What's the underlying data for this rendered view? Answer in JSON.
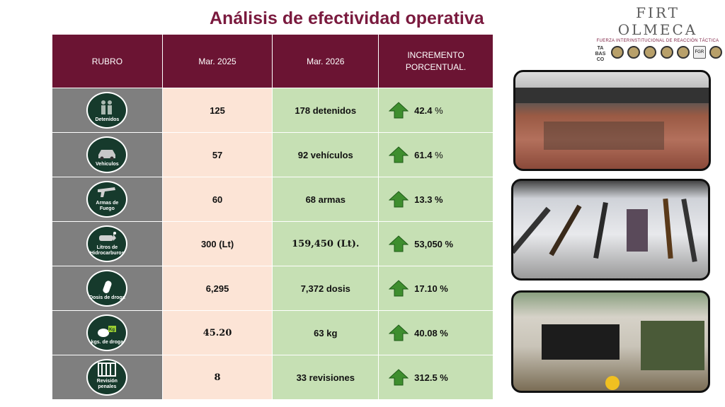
{
  "title": "Análisis de efectividad operativa",
  "brand": {
    "name": "FIRT OLMECA",
    "subtitle": "FUERZA INTERINSTITUCIONAL DE REACCIÓN TÁCTICA",
    "logo_text_1": "TA BAS CO",
    "logo_text_2": "FGR"
  },
  "table": {
    "headers": [
      "RUBRO",
      "Mar. 2025",
      "Mar. 2026",
      "INCREMENTO PORCENTUAL."
    ],
    "rows": [
      {
        "icon": "detainees-icon",
        "label": "Detenidos",
        "prev": "125",
        "curr": "178 detenidos",
        "pct": "42.4",
        "pct_unit": " %"
      },
      {
        "icon": "vehicle-icon",
        "label": "Vehiculos",
        "prev": "57",
        "curr": "92 vehículos",
        "pct": "61.4",
        "pct_unit": " %"
      },
      {
        "icon": "firearm-icon",
        "label": "Armas de Fuego",
        "prev": "60",
        "curr": "68 armas",
        "pct": "13.3 %",
        "pct_unit": ""
      },
      {
        "icon": "fuel-icon",
        "label": "Litros de Hidrocarburos",
        "prev": "300 (Lt)",
        "curr": "159,450 (Lt).",
        "pct": "53,050 %",
        "pct_unit": ""
      },
      {
        "icon": "drug-dose-icon",
        "label": "Dosis de droga",
        "prev": "6,295",
        "curr": "7,372 dosis",
        "pct": "17.10  %",
        "pct_unit": ""
      },
      {
        "icon": "drug-kg-icon",
        "label": "kgs. de droga",
        "prev": "45.20",
        "curr": "63 kg",
        "pct": "40.08 %",
        "pct_unit": ""
      },
      {
        "icon": "prison-icon",
        "label": "Revisión penales",
        "prev": "8",
        "curr": "33 revisiones",
        "pct": "312.5 %",
        "pct_unit": ""
      }
    ]
  },
  "badge_kg": "Kg",
  "colors": {
    "title": "#7a1a3e",
    "header": "#6b1433",
    "arrow": "#3e8e2e"
  }
}
